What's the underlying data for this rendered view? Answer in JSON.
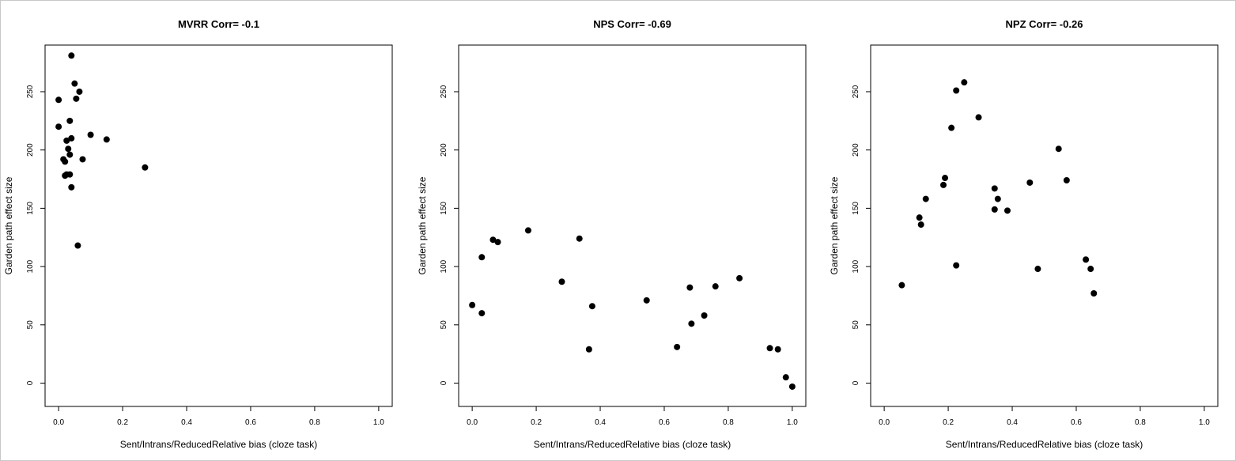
{
  "chart_data": [
    {
      "type": "scatter",
      "title": "MVRR Corr= -0.1",
      "xlabel": "Sent/Intrans/ReducedRelative bias (cloze task)",
      "ylabel": "Garden path effect size",
      "xlim": [
        0,
        1
      ],
      "ylim": [
        -20,
        290
      ],
      "xticks": [
        "0.0",
        "0.2",
        "0.4",
        "0.6",
        "0.8",
        "1.0"
      ],
      "yticks": [
        "0",
        "50",
        "100",
        "150",
        "200",
        "250"
      ],
      "x": [
        0.04,
        0.0,
        0.05,
        0.065,
        0.055,
        0.0,
        0.035,
        0.1,
        0.15,
        0.04,
        0.025,
        0.03,
        0.015,
        0.035,
        0.075,
        0.02,
        0.27,
        0.025,
        0.035,
        0.02,
        0.04,
        0.06
      ],
      "y": [
        281,
        243,
        257,
        250,
        244,
        220,
        225,
        213,
        209,
        210,
        208,
        201,
        192,
        196,
        192,
        190,
        185,
        179,
        179,
        178,
        168,
        118
      ]
    },
    {
      "type": "scatter",
      "title": "NPS Corr= -0.69",
      "xlabel": "Sent/Intrans/ReducedRelative bias (cloze task)",
      "ylabel": "Garden path effect size",
      "xlim": [
        0,
        1
      ],
      "ylim": [
        -20,
        290
      ],
      "xticks": [
        "0.0",
        "0.2",
        "0.4",
        "0.6",
        "0.8",
        "1.0"
      ],
      "yticks": [
        "0",
        "50",
        "100",
        "150",
        "200",
        "250"
      ],
      "x": [
        0.0,
        0.03,
        0.03,
        0.065,
        0.08,
        0.175,
        0.28,
        0.335,
        0.365,
        0.375,
        0.545,
        0.64,
        0.68,
        0.685,
        0.725,
        0.76,
        0.835,
        0.93,
        0.955,
        0.98,
        1.0
      ],
      "y": [
        67,
        60,
        108,
        123,
        121,
        131,
        87,
        124,
        29,
        66,
        71,
        31,
        82,
        51,
        58,
        83,
        90,
        30,
        29,
        5,
        -3
      ]
    },
    {
      "type": "scatter",
      "title": "NPZ Corr= -0.26",
      "xlabel": "Sent/Intrans/ReducedRelative bias (cloze task)",
      "ylabel": "Garden path effect size",
      "xlim": [
        0,
        1
      ],
      "ylim": [
        -20,
        290
      ],
      "xticks": [
        "0.0",
        "0.2",
        "0.4",
        "0.6",
        "0.8",
        "1.0"
      ],
      "yticks": [
        "0",
        "50",
        "100",
        "150",
        "200",
        "250"
      ],
      "x": [
        0.055,
        0.11,
        0.115,
        0.13,
        0.185,
        0.19,
        0.21,
        0.225,
        0.225,
        0.25,
        0.295,
        0.345,
        0.345,
        0.355,
        0.385,
        0.455,
        0.48,
        0.545,
        0.57,
        0.63,
        0.645,
        0.655
      ],
      "y": [
        84,
        142,
        136,
        158,
        170,
        176,
        219,
        251,
        101,
        258,
        228,
        167,
        149,
        158,
        148,
        172,
        98,
        201,
        174,
        106,
        98,
        77
      ]
    }
  ]
}
